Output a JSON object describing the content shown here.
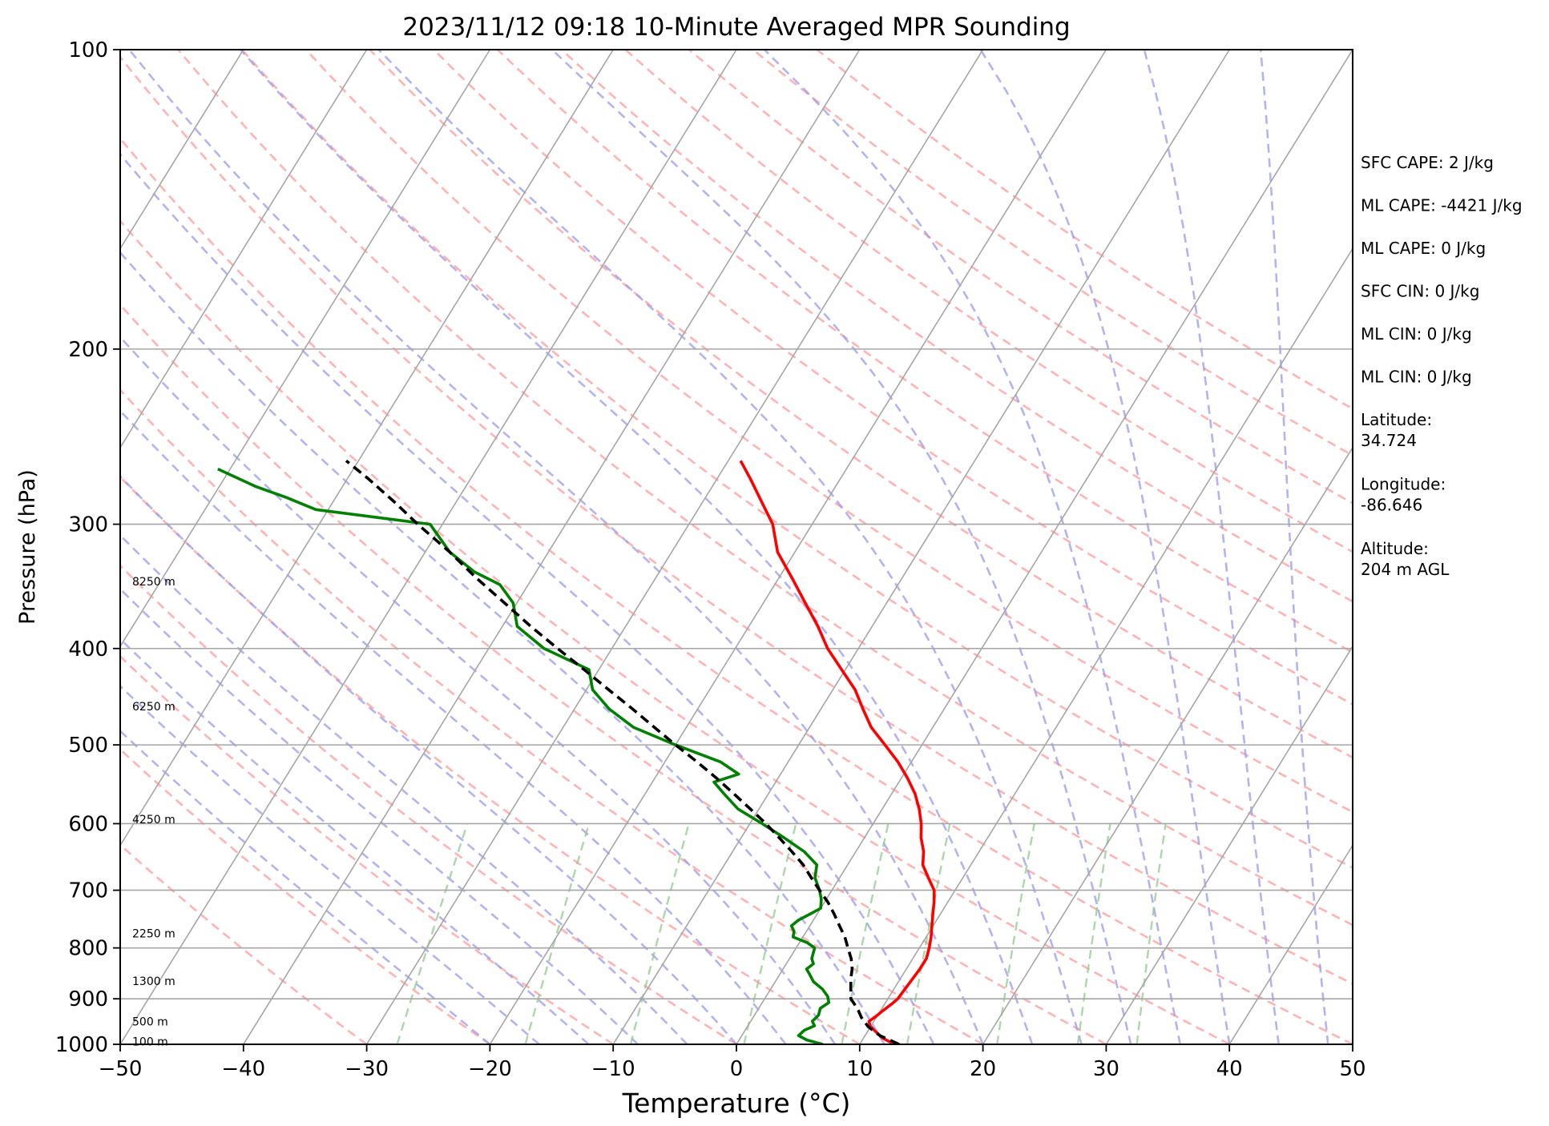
{
  "chart_data": {
    "type": "line",
    "title": "2023/11/12 09:18 10-Minute Averaged MPR Sounding",
    "xlabel": "Temperature (°C)",
    "ylabel": "Pressure (hPa)",
    "xlim": [
      -50,
      50
    ],
    "ylim": [
      1000,
      100
    ],
    "y_scale": "log",
    "x_ticks": [
      -50,
      -40,
      -30,
      -20,
      -10,
      0,
      10,
      20,
      30,
      40,
      50
    ],
    "x_tick_labels": [
      "−50",
      "−40",
      "−30",
      "−20",
      "−10",
      "0",
      "10",
      "20",
      "30",
      "40",
      "50"
    ],
    "y_ticks": [
      100,
      200,
      300,
      400,
      500,
      600,
      700,
      800,
      900,
      1000
    ],
    "y_tick_labels": [
      "100",
      "200",
      "300",
      "400",
      "500",
      "600",
      "700",
      "800",
      "900",
      "1000"
    ],
    "grid": true,
    "colors": {
      "temperature": "#ff0000",
      "dewpoint": "#008000",
      "parcel": "#000000",
      "dry_adiabat": "#ff9a9a",
      "moist_adiabat": "#9a9aee",
      "mixing_ratio": "#8fc98f",
      "isotherm": "#a6a6a6"
    },
    "series": [
      {
        "id": "temperature",
        "pressure": [
          1000,
          985,
          970,
          958,
          948,
          938,
          925,
          910,
          900,
          880,
          860,
          840,
          820,
          800,
          780,
          760,
          740,
          720,
          700,
          680,
          660,
          640,
          620,
          600,
          580,
          560,
          540,
          520,
          500,
          480,
          460,
          440,
          420,
          400,
          380,
          360,
          340,
          320,
          300,
          285,
          270,
          259
        ],
        "values": [
          12.8,
          11.5,
          10.6,
          9.9,
          9.6,
          9.9,
          10.2,
          10.6,
          10.8,
          10.9,
          11.0,
          11.1,
          11.1,
          10.8,
          10.4,
          9.9,
          9.4,
          8.9,
          8.3,
          7.2,
          6.1,
          5.5,
          4.6,
          3.9,
          3.0,
          1.9,
          0.5,
          -1.1,
          -3.0,
          -5.0,
          -6.6,
          -8.2,
          -10.3,
          -12.5,
          -14.4,
          -16.6,
          -18.9,
          -21.4,
          -23.2,
          -25.2,
          -27.3,
          -29.0
        ]
      },
      {
        "id": "dewpoint",
        "pressure": [
          1000,
          990,
          980,
          968,
          958,
          948,
          935,
          920,
          908,
          895,
          880,
          865,
          850,
          840,
          830,
          820,
          800,
          790,
          780,
          770,
          760,
          750,
          740,
          730,
          715,
          700,
          680,
          660,
          640,
          620,
          600,
          580,
          560,
          545,
          535,
          520,
          500,
          480,
          460,
          440,
          420,
          400,
          380,
          360,
          345,
          335,
          320,
          300,
          290,
          282,
          275,
          264
        ],
        "values": [
          7.0,
          5.5,
          4.6,
          4.8,
          5.4,
          5.0,
          5.2,
          5.0,
          5.4,
          5.0,
          4.2,
          3.1,
          2.4,
          1.9,
          2.2,
          1.8,
          1.5,
          0.6,
          -0.8,
          -1.0,
          -1.5,
          -1.2,
          -0.6,
          0.0,
          -0.4,
          -1.0,
          -2.0,
          -2.5,
          -4.2,
          -6.5,
          -9.0,
          -11.7,
          -13.6,
          -15.0,
          -13.4,
          -15.5,
          -20.0,
          -24.3,
          -27.2,
          -29.5,
          -30.8,
          -35.5,
          -38.8,
          -40.3,
          -42.3,
          -45.0,
          -48.0,
          -51.0,
          -61.0,
          -64.0,
          -67.0,
          -71.0
        ]
      },
      {
        "id": "parcel",
        "pressure": [
          1000,
          980,
          960,
          940,
          925,
          910,
          900,
          880,
          860,
          840,
          820,
          800,
          780,
          760,
          740,
          720,
          700,
          680,
          660,
          640,
          620,
          600,
          580,
          560,
          540,
          520,
          500,
          480,
          460,
          440,
          420,
          400,
          380,
          360,
          340,
          320,
          300,
          285,
          270,
          259
        ],
        "values": [
          13.2,
          11.2,
          9.8,
          8.8,
          8.2,
          7.5,
          7.0,
          6.5,
          6.0,
          5.6,
          5.0,
          4.2,
          3.4,
          2.4,
          1.4,
          0.3,
          -1.0,
          -2.3,
          -3.6,
          -5.2,
          -6.9,
          -8.7,
          -10.7,
          -12.8,
          -15.0,
          -17.4,
          -20.0,
          -22.6,
          -25.3,
          -28.2,
          -31.2,
          -34.4,
          -37.7,
          -41.0,
          -44.5,
          -48.0,
          -52.0,
          -55.0,
          -58.3,
          -61.0
        ]
      }
    ],
    "height_labels": [
      {
        "label": "100 m",
        "pressure": 995
      },
      {
        "label": "500 m",
        "pressure": 950
      },
      {
        "label": "1300 m",
        "pressure": 865
      },
      {
        "label": "2250 m",
        "pressure": 775
      },
      {
        "label": "4250 m",
        "pressure": 595
      },
      {
        "label": "6250 m",
        "pressure": 458
      },
      {
        "label": "8250 m",
        "pressure": 343
      }
    ],
    "annotations": [
      "SFC CAPE: 2 J/kg",
      "ML CAPE: -4421 J/kg",
      "ML CAPE: 0 J/kg",
      "SFC CIN: 0 J/kg",
      "ML CIN: 0 J/kg",
      "ML CIN: 0 J/kg",
      "Latitude:\n34.724",
      "Longitude:\n-86.646",
      "Altitude:\n204 m AGL"
    ]
  }
}
